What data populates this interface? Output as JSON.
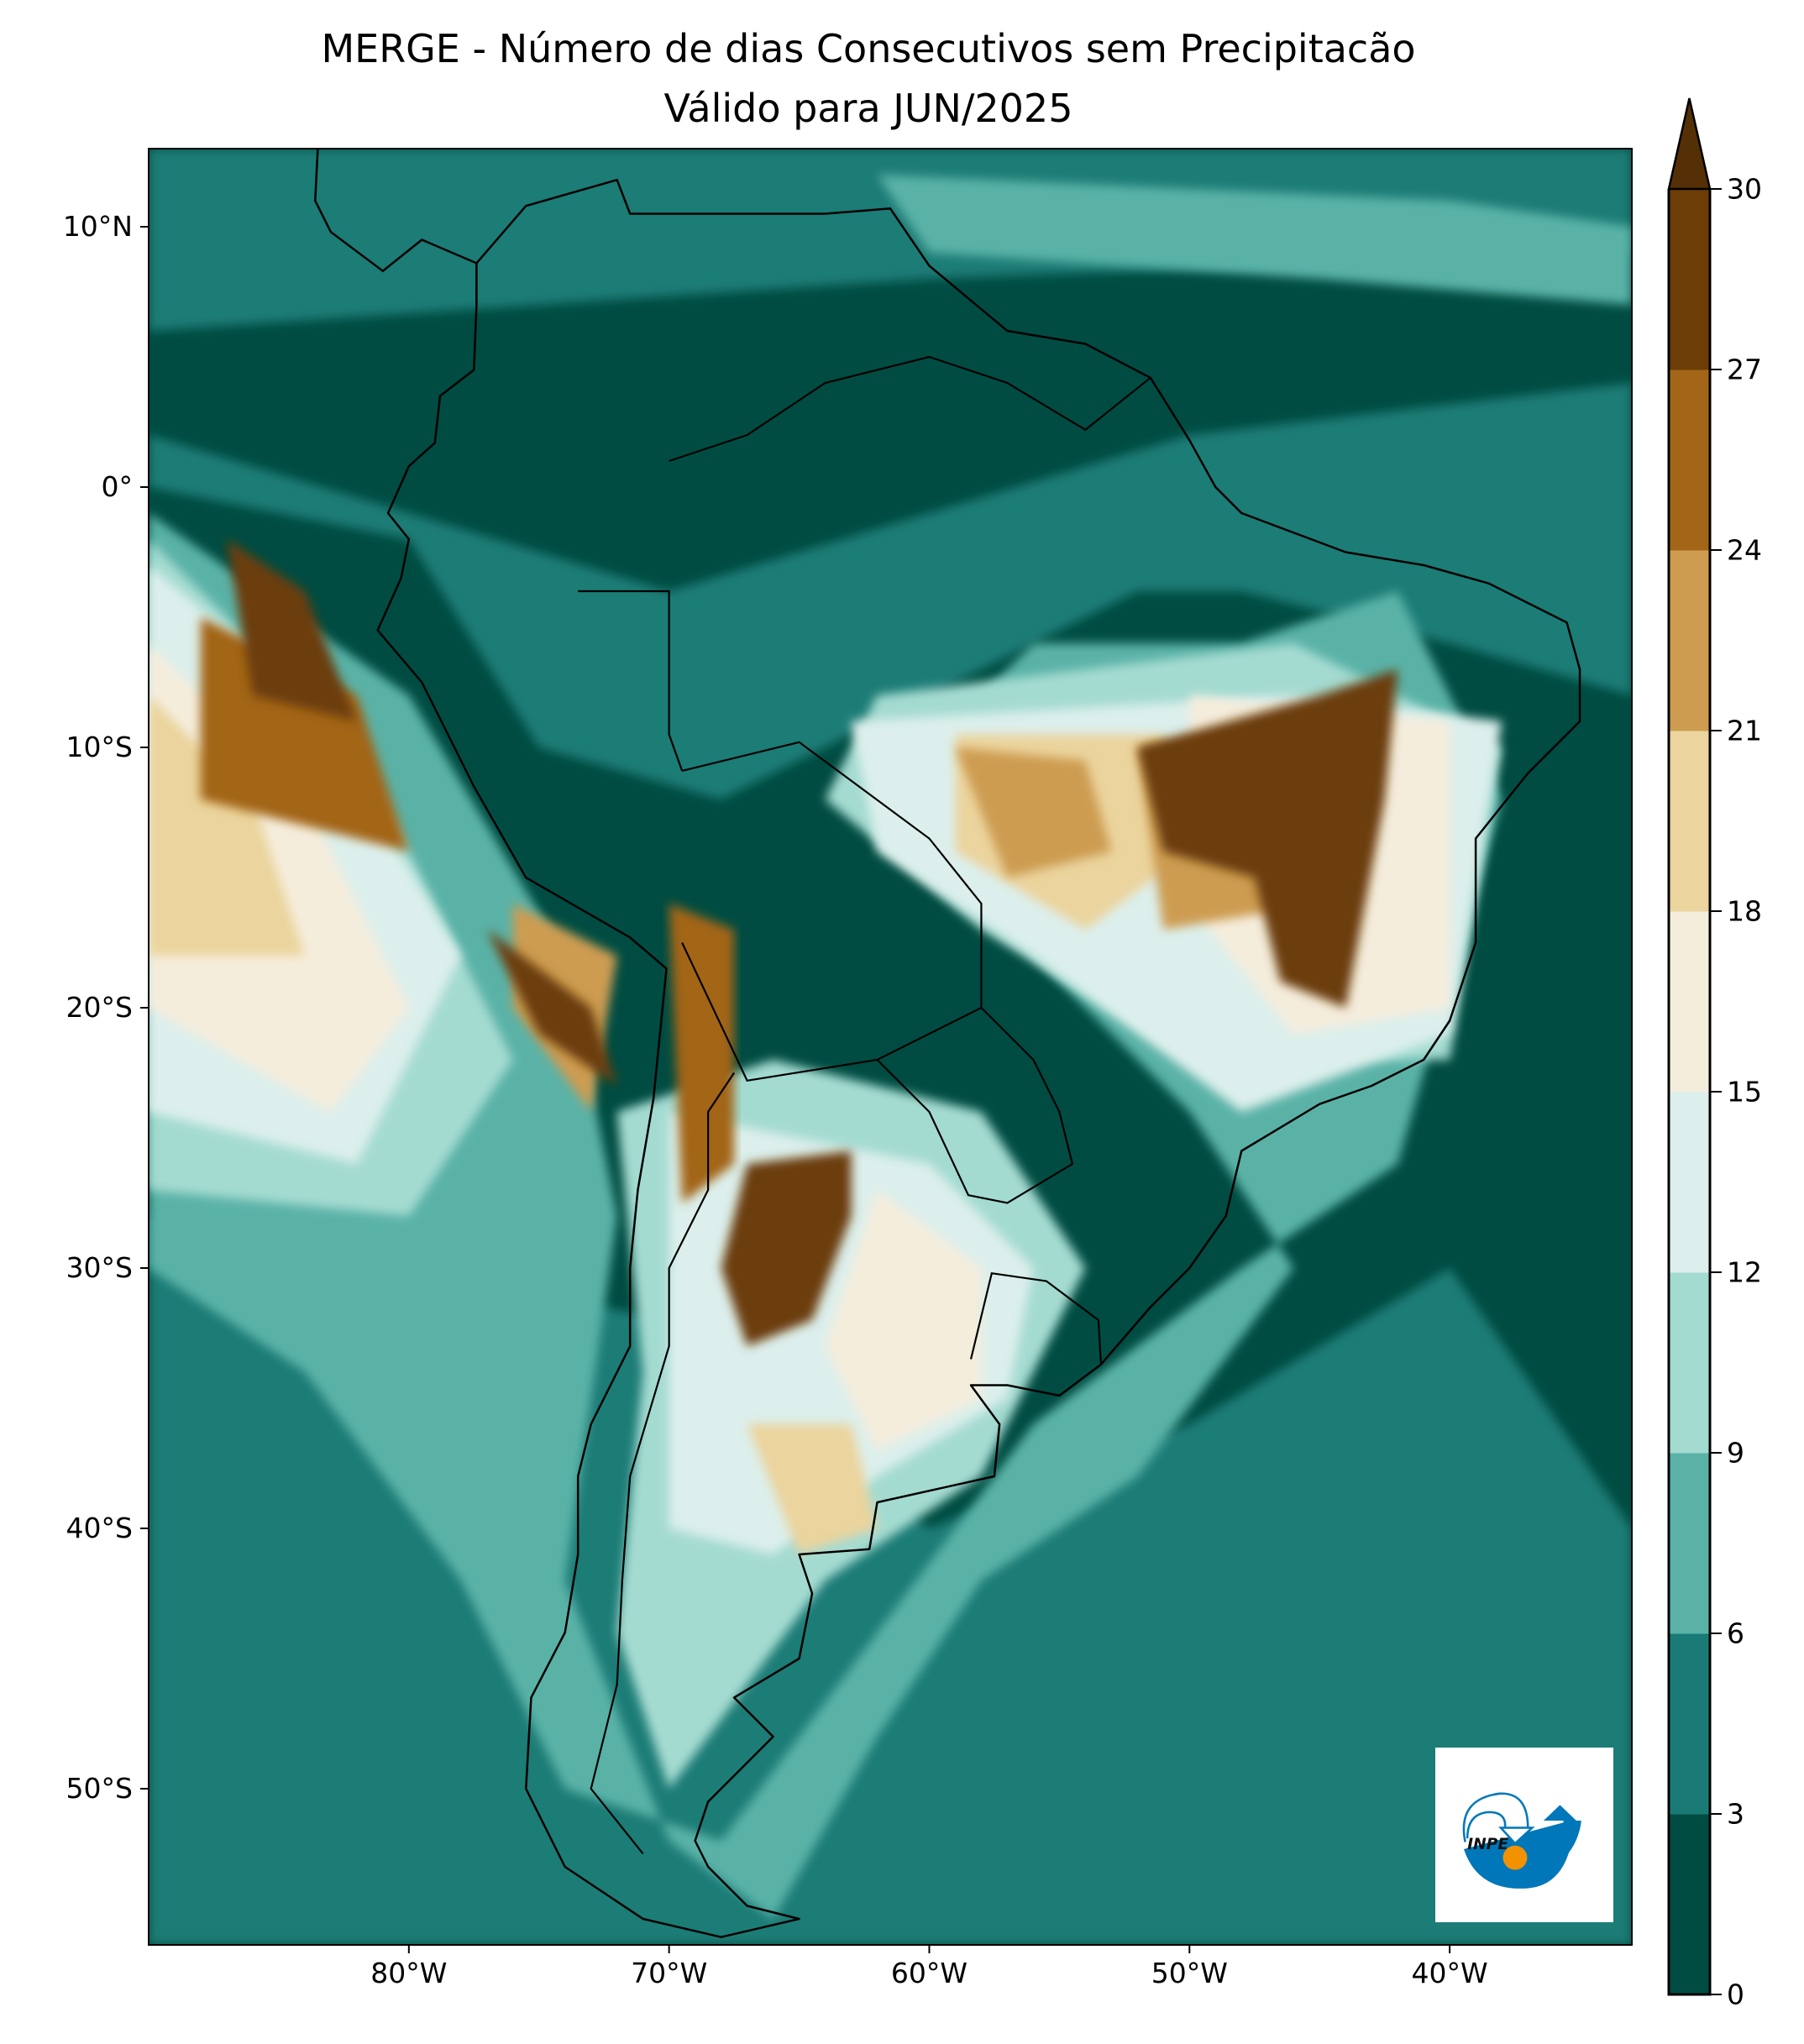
{
  "title": {
    "line1": "MERGE - Número de dias Consecutivos sem Precipitacão",
    "line2": "Válido para JUN/2025"
  },
  "axes": {
    "lat_ticks": [
      {
        "value": 10,
        "label": "10°N"
      },
      {
        "value": 0,
        "label": "0°"
      },
      {
        "value": -10,
        "label": "10°S"
      },
      {
        "value": -20,
        "label": "20°S"
      },
      {
        "value": -30,
        "label": "30°S"
      },
      {
        "value": -40,
        "label": "40°S"
      },
      {
        "value": -50,
        "label": "50°S"
      }
    ],
    "lon_ticks": [
      {
        "value": -80,
        "label": "80°W"
      },
      {
        "value": -70,
        "label": "70°W"
      },
      {
        "value": -60,
        "label": "60°W"
      },
      {
        "value": -50,
        "label": "50°W"
      },
      {
        "value": -40,
        "label": "40°W"
      }
    ],
    "extent": {
      "lon_min": -90,
      "lon_max": -33,
      "lat_min": -56,
      "lat_max": 13
    }
  },
  "colorbar": {
    "levels": [
      "0",
      "3",
      "6",
      "9",
      "12",
      "15",
      "18",
      "21",
      "24",
      "27",
      "30"
    ],
    "colors": [
      "#004c42",
      "#1a7b76",
      "#5ab2a7",
      "#a4dbd1",
      "#dcefec",
      "#f5eddc",
      "#ebd49d",
      "#cd9c51",
      "#a36518",
      "#6c3d07"
    ],
    "extend_color": "#553006",
    "extend": "max"
  },
  "logo": {
    "text": "INPE",
    "blue": "#0077b9",
    "orange": "#f39200"
  }
}
